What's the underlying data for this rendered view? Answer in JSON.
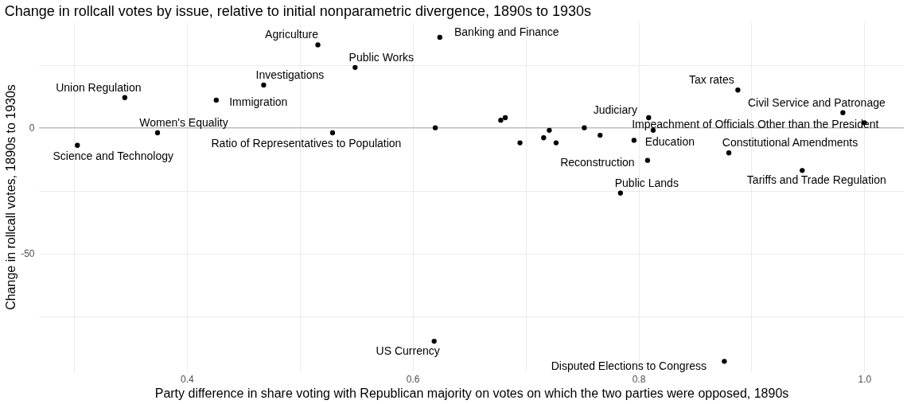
{
  "chart_data": {
    "type": "scatter",
    "title": "Change in rollcall votes by issue, relative to initial nonparametric divergence, 1890s to 1930s",
    "xlabel": "Party difference in share voting with Republican majority on votes on which the two parties were opposed, 1890s",
    "ylabel": "Change in rollcall votes, 1890s to 1930s",
    "series": [
      {
        "color": "#000000",
        "x": [
          0.303,
          0.345,
          0.374,
          0.426,
          0.468,
          0.516,
          0.529,
          0.549,
          0.62,
          0.624,
          0.678,
          0.682,
          0.695,
          0.716,
          0.721,
          0.727,
          0.752,
          0.766,
          0.796,
          0.784,
          0.809,
          0.813,
          0.808,
          0.88,
          0.888,
          0.981,
          1.0,
          0.945,
          0.619,
          0.876
        ],
        "values": [
          -7,
          12,
          -2,
          11,
          17,
          33,
          -2,
          24,
          0,
          36,
          3,
          4,
          -6,
          -4,
          -1,
          -6,
          0,
          -3,
          -5,
          -26,
          4,
          -1,
          -13,
          -10,
          15,
          6,
          2,
          -17,
          -85,
          -93
        ]
      }
    ],
    "annotations": [
      {
        "text": "Science and Technology",
        "x": 0.303,
        "y": -7
      },
      {
        "text": "Union Regulation",
        "x": 0.345,
        "y": 12
      },
      {
        "text": "Women's Equality",
        "x": 0.374,
        "y": -2
      },
      {
        "text": "Immigration",
        "x": 0.426,
        "y": 11
      },
      {
        "text": "Investigations",
        "x": 0.468,
        "y": 17
      },
      {
        "text": "Agriculture",
        "x": 0.516,
        "y": 33
      },
      {
        "text": "Ratio of Representatives to Population",
        "x": 0.529,
        "y": -2
      },
      {
        "text": "Public Works",
        "x": 0.549,
        "y": 24
      },
      {
        "text": "Banking and Finance",
        "x": 0.624,
        "y": 36
      },
      {
        "text": "Judiciary",
        "x": 0.809,
        "y": 4
      },
      {
        "text": "Impeachment of Officials Other than the President",
        "x": 1.0,
        "y": 2
      },
      {
        "text": "Education",
        "x": 0.796,
        "y": -5
      },
      {
        "text": "Reconstruction",
        "x": 0.808,
        "y": -13
      },
      {
        "text": "Public Lands",
        "x": 0.784,
        "y": -26
      },
      {
        "text": "Constitutional Amendments",
        "x": 0.88,
        "y": -10
      },
      {
        "text": "Tax rates",
        "x": 0.888,
        "y": 15
      },
      {
        "text": "Civil Service and Patronage",
        "x": 0.981,
        "y": 6
      },
      {
        "text": "Tariffs and Trade Regulation",
        "x": 0.945,
        "y": -17
      },
      {
        "text": "US Currency",
        "x": 0.619,
        "y": -85
      },
      {
        "text": "Disputed Elections to Congress",
        "x": 0.876,
        "y": -93
      }
    ],
    "xlim": [
      0.269,
      1.035
    ],
    "xticks": [
      {
        "value": 0.3,
        "label": null
      },
      0.4,
      {
        "value": 0.5,
        "label": null
      },
      0.6,
      {
        "value": 0.7,
        "label": null
      },
      0.8,
      {
        "value": 0.9,
        "label": null
      },
      {
        "value": 1,
        "label": "1.0"
      }
    ],
    "ylim": [
      -97,
      42
    ],
    "yticks": [
      {
        "value": -75,
        "label": null
      },
      -50,
      {
        "value": -25,
        "label": null
      },
      0,
      {
        "value": 25,
        "label": null
      }
    ],
    "ref_lines": [
      {
        "axis": "y",
        "value": 0,
        "color": "#bdbdbd"
      }
    ],
    "grid": true,
    "marker": "circle"
  }
}
